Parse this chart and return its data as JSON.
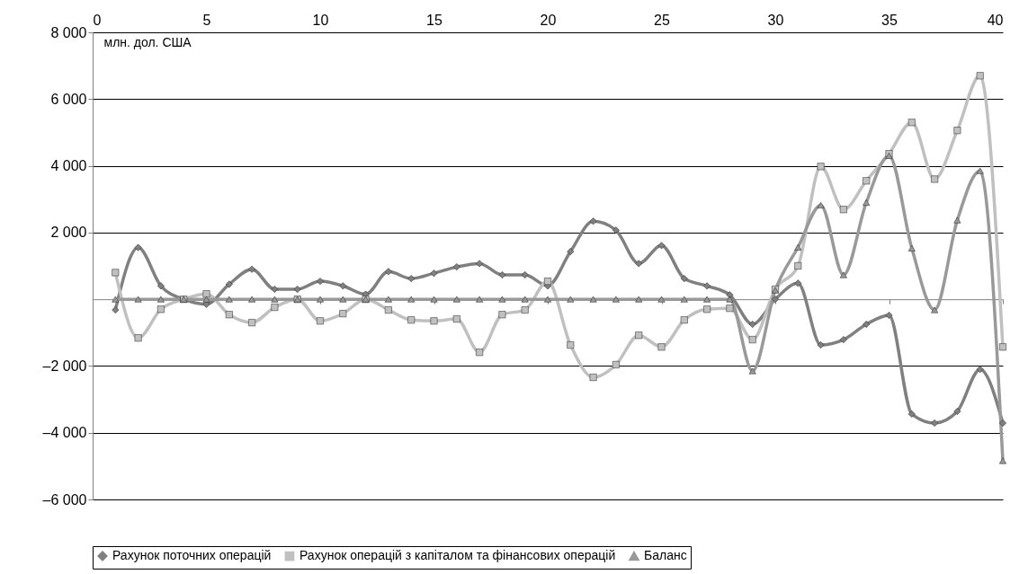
{
  "chart_data": {
    "type": "line",
    "ylabel": "млн. дол. США",
    "x": [
      1,
      2,
      3,
      4,
      5,
      6,
      7,
      8,
      9,
      10,
      11,
      12,
      13,
      14,
      15,
      16,
      17,
      18,
      19,
      20,
      21,
      22,
      23,
      24,
      25,
      26,
      27,
      28,
      29,
      30,
      31,
      32,
      33,
      34,
      35,
      36,
      37,
      38,
      39,
      40
    ],
    "series": [
      {
        "name": "Рахунок поточних операцій",
        "color": "#808080",
        "marker": "diamond",
        "values": [
          -320,
          1550,
          400,
          0,
          -150,
          450,
          900,
          300,
          300,
          540,
          400,
          150,
          830,
          620,
          780,
          970,
          1070,
          730,
          730,
          400,
          1430,
          2340,
          2070,
          1070,
          1610,
          620,
          400,
          130,
          -750,
          0,
          480,
          -1370,
          -1210,
          -750,
          -480,
          -3440,
          -3710,
          -3360,
          -2100,
          -3710
        ]
      },
      {
        "name": "Рахунок операцій з капіталом та фінансових операцій",
        "color": "#c0c0c0",
        "marker": "square",
        "values": [
          800,
          -1160,
          -300,
          0,
          160,
          -460,
          -700,
          -240,
          0,
          -650,
          -430,
          0,
          -320,
          -620,
          -650,
          -590,
          -1590,
          -460,
          -320,
          540,
          -1370,
          -2340,
          -1960,
          -1080,
          -1430,
          -620,
          -300,
          -270,
          -1210,
          300,
          1000,
          3980,
          2690,
          3550,
          4360,
          5300,
          3600,
          5060,
          6700,
          -1430
        ]
      },
      {
        "name": "Баланс",
        "color": "#999999",
        "marker": "triangle",
        "values": [
          0,
          0,
          0,
          0,
          0,
          0,
          0,
          0,
          0,
          0,
          0,
          0,
          0,
          0,
          0,
          0,
          0,
          0,
          0,
          0,
          0,
          0,
          0,
          0,
          0,
          0,
          0,
          0,
          -2150,
          270,
          1560,
          2820,
          730,
          2900,
          4300,
          1530,
          -320,
          2370,
          3850,
          -4840
        ]
      }
    ],
    "xlim": [
      0,
      40
    ],
    "xticks": [
      0,
      5,
      10,
      15,
      20,
      25,
      30,
      35,
      40
    ],
    "ylim": [
      -6000,
      8000
    ],
    "yticks": [
      {
        "value": -6000,
        "label": "–6 000"
      },
      {
        "value": -4000,
        "label": "–4 000"
      },
      {
        "value": -2000,
        "label": "–2 000"
      },
      {
        "value": 2000,
        "label": "2 000"
      },
      {
        "value": 4000,
        "label": "4 000"
      },
      {
        "value": 6000,
        "label": "6 000"
      },
      {
        "value": 8000,
        "label": "8 000"
      }
    ],
    "grid": "y",
    "legend": "bottom",
    "line_style": "solid"
  }
}
